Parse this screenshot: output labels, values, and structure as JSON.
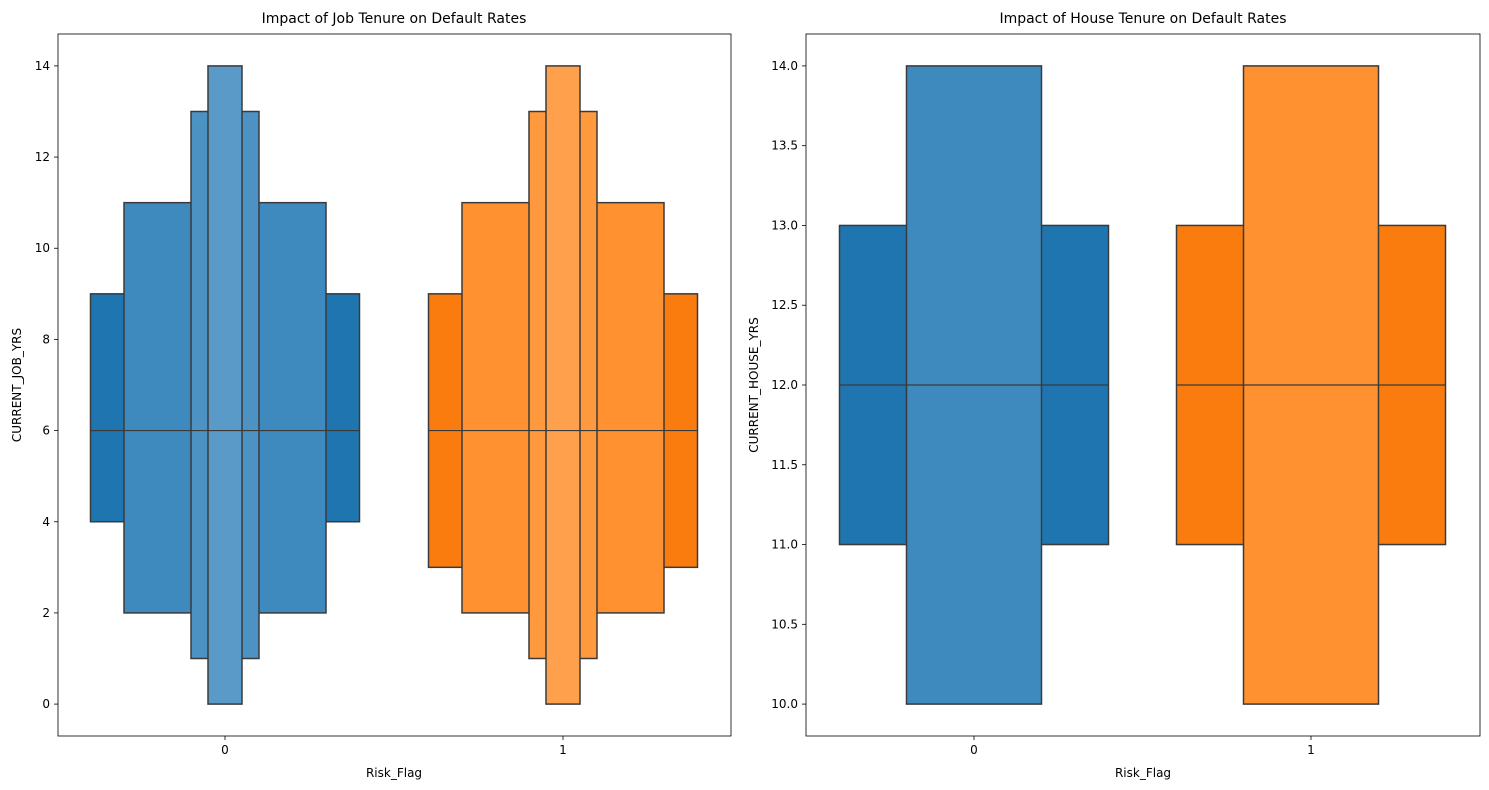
{
  "chart_data": [
    {
      "type": "boxen",
      "title": "Impact of Job Tenure on Default Rates",
      "xlabel": "Risk_Flag",
      "ylabel": "CURRENT_JOB_YRS",
      "categories": [
        "0",
        "1"
      ],
      "ylim": [
        -0.7,
        14.7
      ],
      "yticks": [
        0,
        2,
        4,
        6,
        8,
        10,
        12,
        14
      ],
      "series": [
        {
          "category": "0",
          "color": "#1f77b4",
          "median": 6,
          "boxes": [
            {
              "low": 4,
              "high": 9
            },
            {
              "low": 2,
              "high": 11
            },
            {
              "low": 1,
              "high": 13
            },
            {
              "low": 0,
              "high": 14
            }
          ]
        },
        {
          "category": "1",
          "color": "#ff7f0e",
          "median": 6,
          "boxes": [
            {
              "low": 3,
              "high": 9
            },
            {
              "low": 2,
              "high": 11
            },
            {
              "low": 1,
              "high": 13
            },
            {
              "low": 0,
              "high": 14
            }
          ]
        }
      ]
    },
    {
      "type": "boxen",
      "title": "Impact of House Tenure on Default Rates",
      "xlabel": "Risk_Flag",
      "ylabel": "CURRENT_HOUSE_YRS",
      "categories": [
        "0",
        "1"
      ],
      "ylim": [
        9.8,
        14.2
      ],
      "yticks": [
        "10.0",
        "10.5",
        "11.0",
        "11.5",
        "12.0",
        "12.5",
        "13.0",
        "13.5",
        "14.0"
      ],
      "series": [
        {
          "category": "0",
          "color": "#1f77b4",
          "median": 12,
          "boxes": [
            {
              "low": 11,
              "high": 13
            },
            {
              "low": 10,
              "high": 14
            }
          ]
        },
        {
          "category": "1",
          "color": "#ff7f0e",
          "median": 12,
          "boxes": [
            {
              "low": 11,
              "high": 13
            },
            {
              "low": 10,
              "high": 14
            }
          ]
        }
      ]
    }
  ]
}
